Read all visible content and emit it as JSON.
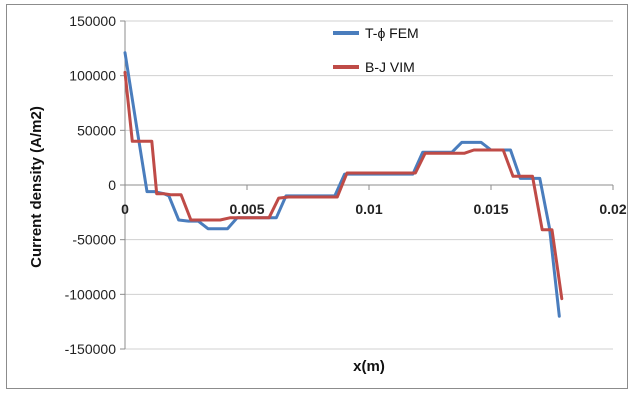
{
  "chart_data": {
    "type": "line",
    "title": "",
    "xlabel": "x(m)",
    "ylabel": "Current density (A/m2)",
    "xlim": [
      0,
      0.02
    ],
    "ylim": [
      -150000,
      150000
    ],
    "x_ticks": [
      0,
      0.005,
      0.01,
      0.015,
      0.02
    ],
    "x_tick_labels": [
      "0",
      "0.005",
      "0.01",
      "0.015",
      "0.02"
    ],
    "y_ticks": [
      150000,
      100000,
      50000,
      0,
      -50000,
      -100000,
      -150000
    ],
    "y_tick_labels": [
      "150000",
      "100000",
      "50000",
      "0",
      "-50000",
      "-100000",
      "-150000"
    ],
    "grid": "horizontal",
    "legend_position": "top-center",
    "series": [
      {
        "name": "T-ϕ FEM",
        "color": "#4a7dbd",
        "x": [
          0,
          0.0005,
          0.0009,
          0.0012,
          0.0014,
          0.0016,
          0.0018,
          0.0022,
          0.0026,
          0.003,
          0.0034,
          0.0038,
          0.0042,
          0.0046,
          0.005,
          0.0054,
          0.0058,
          0.0062,
          0.0066,
          0.007,
          0.0074,
          0.0078,
          0.0082,
          0.0086,
          0.009,
          0.0094,
          0.0098,
          0.0102,
          0.0106,
          0.011,
          0.0114,
          0.0118,
          0.0122,
          0.0126,
          0.013,
          0.0134,
          0.0138,
          0.0142,
          0.0146,
          0.015,
          0.0154,
          0.0158,
          0.0162,
          0.0166,
          0.017,
          0.0174,
          0.0178
        ],
        "y": [
          121000,
          50000,
          -6000,
          -6000,
          -7000,
          -8000,
          -10000,
          -32000,
          -33000,
          -33000,
          -40000,
          -40000,
          -40000,
          -30000,
          -30000,
          -30000,
          -30000,
          -30000,
          -10000,
          -10000,
          -10000,
          -10000,
          -10000,
          -10000,
          10000,
          10000,
          10000,
          10000,
          10000,
          10000,
          10000,
          10000,
          30000,
          30000,
          30000,
          30000,
          39000,
          39000,
          39000,
          32000,
          32000,
          32000,
          6000,
          6000,
          6000,
          -40000,
          -120000
        ]
      },
      {
        "name": "B-J VIM",
        "color": "#bf4b47",
        "x": [
          0,
          0.0003,
          0.0007,
          0.0011,
          0.0013,
          0.0016,
          0.0019,
          0.0023,
          0.0027,
          0.0031,
          0.0035,
          0.0039,
          0.0043,
          0.0047,
          0.0051,
          0.0055,
          0.0059,
          0.0063,
          0.0067,
          0.0071,
          0.0075,
          0.0079,
          0.0083,
          0.0087,
          0.0091,
          0.0095,
          0.0099,
          0.0103,
          0.0107,
          0.0111,
          0.0115,
          0.0119,
          0.0123,
          0.0127,
          0.0131,
          0.0135,
          0.0139,
          0.0143,
          0.0147,
          0.0151,
          0.0155,
          0.0159,
          0.0163,
          0.0167,
          0.0171,
          0.0175,
          0.0179
        ],
        "y": [
          103000,
          40000,
          40000,
          40000,
          -8000,
          -8000,
          -9000,
          -9000,
          -32000,
          -32000,
          -32000,
          -32000,
          -30000,
          -30000,
          -30000,
          -30000,
          -30000,
          -12000,
          -11000,
          -11000,
          -11000,
          -11000,
          -11000,
          -11000,
          11000,
          11000,
          11000,
          11000,
          11000,
          11000,
          11000,
          11000,
          29000,
          29000,
          29000,
          29000,
          29000,
          32000,
          32000,
          32000,
          32000,
          8000,
          8000,
          8000,
          -41000,
          -41000,
          -104000
        ]
      }
    ]
  }
}
